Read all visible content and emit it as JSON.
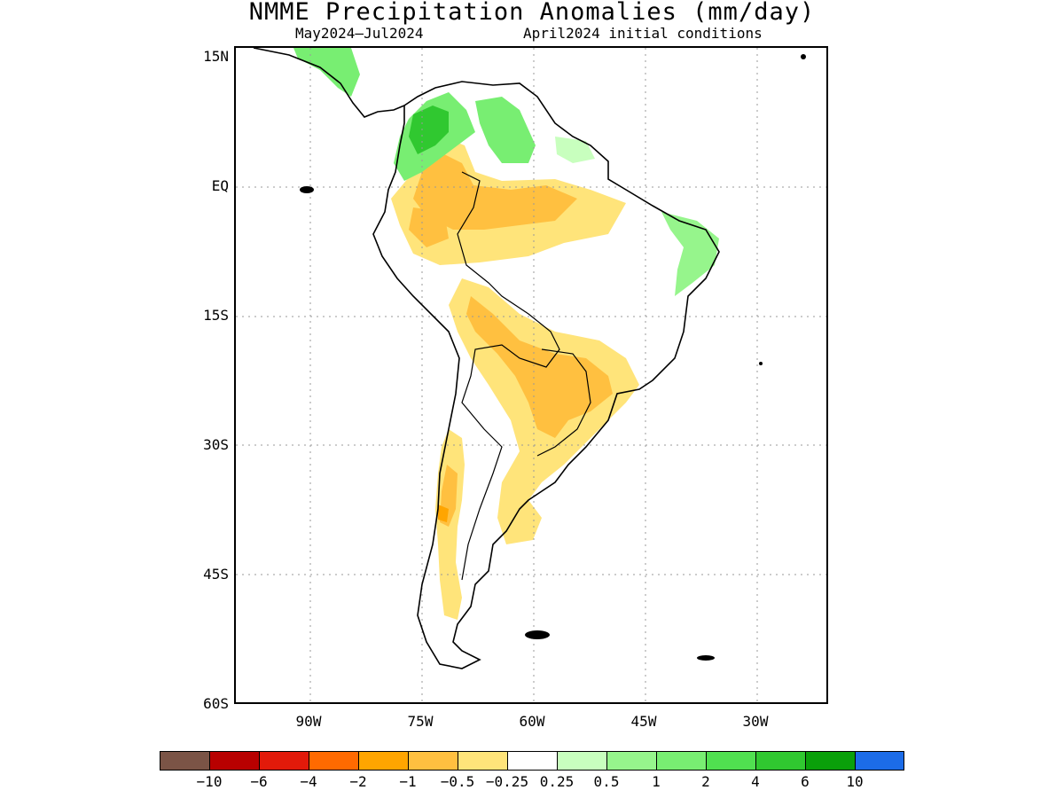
{
  "title": "NMME Precipitation Anomalies (mm/day)",
  "subtitle_left": "May2024–Jul2024",
  "subtitle_right": "April2024 initial conditions",
  "y_axis_labels": [
    "15N",
    "EQ",
    "15S",
    "30S",
    "45S",
    "60S"
  ],
  "x_axis_labels": [
    "90W",
    "75W",
    "60W",
    "45W",
    "30W"
  ],
  "map": {
    "lon_range": [
      -100,
      -20
    ],
    "lat_range": [
      -60,
      15
    ],
    "grid": true,
    "coastline_color": "#000000"
  },
  "colorbar": {
    "colors": [
      "#7b5446",
      "#b80000",
      "#e21a0a",
      "#ff6a00",
      "#ffa500",
      "#ffc040",
      "#ffe47a",
      "#ffffff",
      "#c8ffbe",
      "#96f58c",
      "#78ee72",
      "#50e050",
      "#30c830",
      "#0aa00a",
      "#1c6ce8"
    ],
    "labels": [
      "−10",
      "−6",
      "−4",
      "−2",
      "−1",
      "−0.5",
      "−0.25",
      "0.25",
      "0.5",
      "1",
      "2",
      "4",
      "6",
      "10"
    ]
  },
  "anomaly_colors": {
    "dry_light": "#ffe47a",
    "dry_medium": "#ffc040",
    "dry_strong": "#ffa500",
    "wet_light": "#c8ffbe",
    "wet_medium": "#78ee72",
    "wet_strong": "#30c830"
  }
}
